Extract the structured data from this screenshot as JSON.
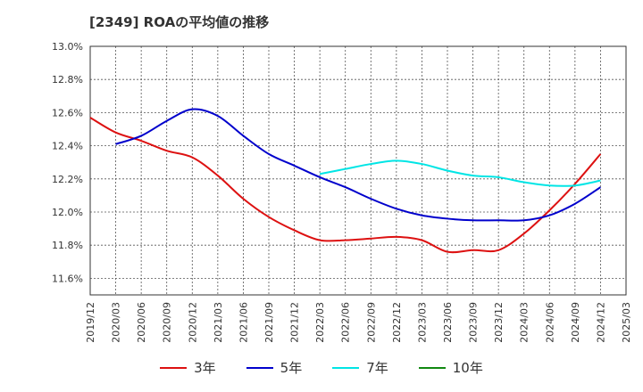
{
  "chart_data": {
    "type": "line",
    "title": "[2349]  ROAの平均値の推移",
    "x": [
      "2019/12",
      "2020/03",
      "2020/06",
      "2020/09",
      "2020/12",
      "2021/03",
      "2021/06",
      "2021/09",
      "2021/12",
      "2022/03",
      "2022/06",
      "2022/09",
      "2022/12",
      "2023/03",
      "2023/06",
      "2023/09",
      "2023/12",
      "2024/03",
      "2024/06",
      "2024/09",
      "2024/12",
      "2025/03"
    ],
    "ylim": [
      11.5,
      13.0
    ],
    "yticks": [
      11.6,
      11.8,
      12.0,
      12.2,
      12.4,
      12.6,
      12.8,
      13.0
    ],
    "ytick_labels": [
      "11.6%",
      "11.8%",
      "12.0%",
      "12.2%",
      "12.4%",
      "12.6%",
      "12.8%",
      "13.0%"
    ],
    "grid": true,
    "legend_position": "bottom",
    "series": [
      {
        "name": "3年",
        "color": "#dd1111",
        "values": [
          12.57,
          12.48,
          12.43,
          12.37,
          12.33,
          12.22,
          12.08,
          11.97,
          11.89,
          11.83,
          11.83,
          11.84,
          11.85,
          11.83,
          11.76,
          11.77,
          11.77,
          11.87,
          12.01,
          12.17,
          12.35,
          null
        ]
      },
      {
        "name": "5年",
        "color": "#0000cc",
        "values": [
          null,
          12.41,
          12.46,
          12.55,
          12.62,
          12.58,
          12.46,
          12.35,
          12.28,
          12.21,
          12.15,
          12.08,
          12.02,
          11.98,
          11.96,
          11.95,
          11.95,
          11.95,
          11.98,
          12.05,
          12.15,
          null
        ]
      },
      {
        "name": "7年",
        "color": "#00e5e5",
        "values": [
          null,
          null,
          null,
          null,
          null,
          null,
          null,
          null,
          null,
          12.23,
          12.26,
          12.29,
          12.31,
          12.29,
          12.25,
          12.22,
          12.21,
          12.18,
          12.16,
          12.16,
          12.19,
          null
        ]
      },
      {
        "name": "10年",
        "color": "#118811",
        "values": [
          null,
          null,
          null,
          null,
          null,
          null,
          null,
          null,
          null,
          null,
          null,
          null,
          null,
          null,
          null,
          null,
          null,
          null,
          null,
          null,
          null,
          null
        ]
      }
    ]
  }
}
